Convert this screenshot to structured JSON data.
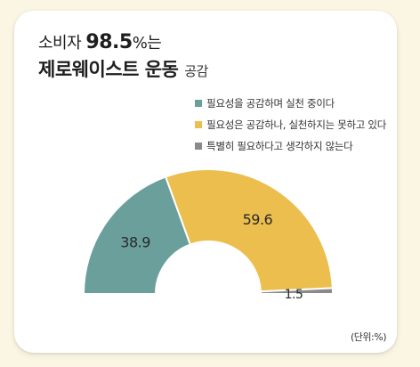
{
  "title": {
    "prefix": "소비자 ",
    "highlight": "98.5",
    "suffix": "%는",
    "line2_bold": "제로웨이스트 운동",
    "line2_light": "공감"
  },
  "unit": "(단위:%)",
  "chart_data": {
    "type": "pie",
    "shape": "semicircle-donut",
    "title": "소비자 98.5%는 제로웨이스트 운동 공감",
    "unit": "%",
    "legend_position": "top-right",
    "categories": [
      "필요성을 공감하며 실천 중이다",
      "필요성은 공감하나, 실천하지는 못하고 있다",
      "특별히 필요하다고 생각하지 않는다"
    ],
    "values": [
      38.9,
      59.6,
      1.5
    ],
    "colors": [
      "#6a9f9c",
      "#ebbe4e",
      "#8a8a8a"
    ]
  }
}
